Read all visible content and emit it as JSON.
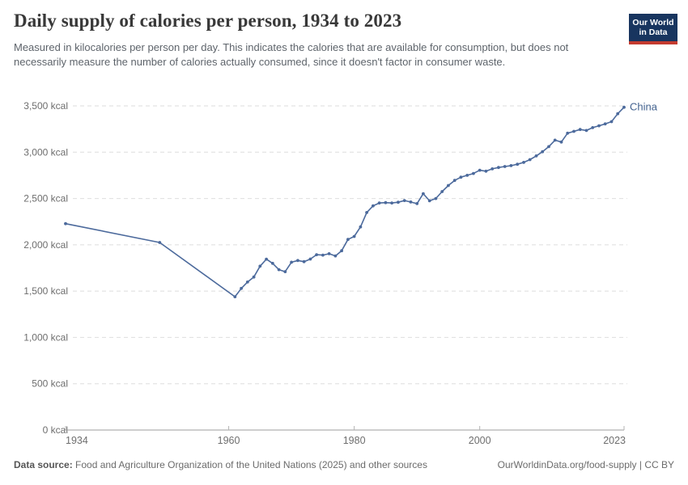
{
  "header": {
    "title": "Daily supply of calories per person, 1934 to 2023",
    "subtitle": "Measured in kilocalories per person per day. This indicates the calories that are available for consumption, but does not necessarily measure the number of calories actually consumed, since it doesn't factor in consumer waste."
  },
  "brand": {
    "line1": "Our World",
    "line2": "in Data",
    "bg_color": "#18355f",
    "accent_color": "#c43b2f"
  },
  "chart_data": {
    "type": "line",
    "title": "Daily supply of calories per person, 1934 to 2023",
    "entity": "China",
    "xlabel": "",
    "ylabel": "kcal",
    "xlim": [
      1934,
      2023
    ],
    "ylim": [
      0,
      3500
    ],
    "grid": "horizontal dashed",
    "legend_position": "end-of-line label",
    "x_ticks": [
      1934,
      1960,
      1980,
      2000,
      2023
    ],
    "y_ticks": [
      0,
      500,
      1000,
      1500,
      2000,
      2500,
      3000,
      3500
    ],
    "y_tick_labels": [
      "0 kcal",
      "500 kcal",
      "1,000 kcal",
      "1,500 kcal",
      "2,000 kcal",
      "2,500 kcal",
      "3,000 kcal",
      "3,500 kcal"
    ],
    "line_color": "#4c6a9c",
    "label_color": "#43628f",
    "series": [
      {
        "name": "China",
        "points": [
          [
            1934,
            2228
          ],
          [
            1949,
            2025
          ],
          [
            1961,
            1439
          ],
          [
            1962,
            1529
          ],
          [
            1963,
            1598
          ],
          [
            1964,
            1652
          ],
          [
            1965,
            1769
          ],
          [
            1966,
            1845
          ],
          [
            1967,
            1800
          ],
          [
            1968,
            1732
          ],
          [
            1969,
            1710
          ],
          [
            1970,
            1812
          ],
          [
            1971,
            1830
          ],
          [
            1972,
            1818
          ],
          [
            1973,
            1846
          ],
          [
            1974,
            1893
          ],
          [
            1975,
            1889
          ],
          [
            1976,
            1904
          ],
          [
            1977,
            1880
          ],
          [
            1978,
            1936
          ],
          [
            1979,
            2058
          ],
          [
            1980,
            2090
          ],
          [
            1981,
            2193
          ],
          [
            1982,
            2349
          ],
          [
            1983,
            2420
          ],
          [
            1984,
            2452
          ],
          [
            1985,
            2455
          ],
          [
            1986,
            2452
          ],
          [
            1987,
            2460
          ],
          [
            1988,
            2478
          ],
          [
            1989,
            2462
          ],
          [
            1990,
            2445
          ],
          [
            1991,
            2552
          ],
          [
            1992,
            2475
          ],
          [
            1993,
            2500
          ],
          [
            1994,
            2575
          ],
          [
            1995,
            2640
          ],
          [
            1996,
            2695
          ],
          [
            1997,
            2730
          ],
          [
            1998,
            2750
          ],
          [
            1999,
            2770
          ],
          [
            2000,
            2805
          ],
          [
            2001,
            2795
          ],
          [
            2002,
            2820
          ],
          [
            2003,
            2835
          ],
          [
            2004,
            2845
          ],
          [
            2005,
            2855
          ],
          [
            2006,
            2870
          ],
          [
            2007,
            2890
          ],
          [
            2008,
            2920
          ],
          [
            2009,
            2960
          ],
          [
            2010,
            3005
          ],
          [
            2011,
            3060
          ],
          [
            2012,
            3130
          ],
          [
            2013,
            3110
          ],
          [
            2014,
            3205
          ],
          [
            2015,
            3225
          ],
          [
            2016,
            3245
          ],
          [
            2017,
            3235
          ],
          [
            2018,
            3265
          ],
          [
            2019,
            3285
          ],
          [
            2020,
            3305
          ],
          [
            2021,
            3330
          ],
          [
            2022,
            3415
          ],
          [
            2023,
            3485
          ]
        ]
      }
    ]
  },
  "footer": {
    "datasource_label": "Data source:",
    "datasource_text": " Food and Agriculture Organization of the United Nations (2025) and other sources",
    "credit": "OurWorldinData.org/food-supply | CC BY"
  }
}
